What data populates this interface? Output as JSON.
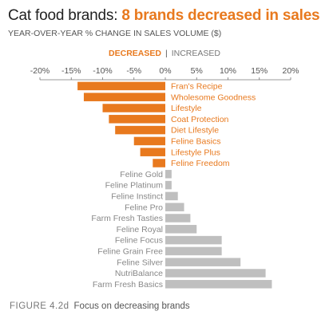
{
  "header": {
    "title_main": "Cat food brands: ",
    "title_highlight": "8 brands decreased in sales",
    "subtitle": "YEAR-OVER-YEAR % CHANGE IN SALES VOLUME ($)"
  },
  "legend": {
    "decreased": "DECREASED",
    "separator": "|",
    "increased": "INCREASED"
  },
  "colors": {
    "decreased": "#e8791e",
    "increased": "#bfbfbf",
    "increased_label": "#888888",
    "axis": "#555555"
  },
  "caption": {
    "figure": "FIGURE 4.2d",
    "text": "Focus on decreasing brands"
  },
  "chart_data": {
    "type": "bar",
    "orientation": "horizontal",
    "xlim": [
      -20,
      20
    ],
    "ticks": [
      -20,
      -15,
      -10,
      -5,
      0,
      5,
      10,
      15,
      20
    ],
    "tick_labels": [
      "-20%",
      "-15%",
      "-10%",
      "-5%",
      "0%",
      "5%",
      "10%",
      "15%",
      "20%"
    ],
    "grid": false,
    "categories": [
      "Fran's Recipe",
      "Wholesome Goodness",
      "Lifestyle",
      "Coat Protection",
      "Diet Lifestyle",
      "Feline Basics",
      "Lifestyle Plus",
      "Feline Freedom",
      "Feline Gold",
      "Feline Platinum",
      "Feline Instinct",
      "Feline Pro",
      "Farm Fresh Tasties",
      "Feline Royal",
      "Feline Focus",
      "Feline Grain Free",
      "Feline Silver",
      "NutriBalance",
      "Farm Fresh Basics"
    ],
    "values": [
      -14,
      -13,
      -10,
      -9,
      -8,
      -5,
      -4,
      -2,
      1,
      1,
      2,
      3,
      4,
      5,
      9,
      9,
      12,
      16,
      17
    ]
  }
}
